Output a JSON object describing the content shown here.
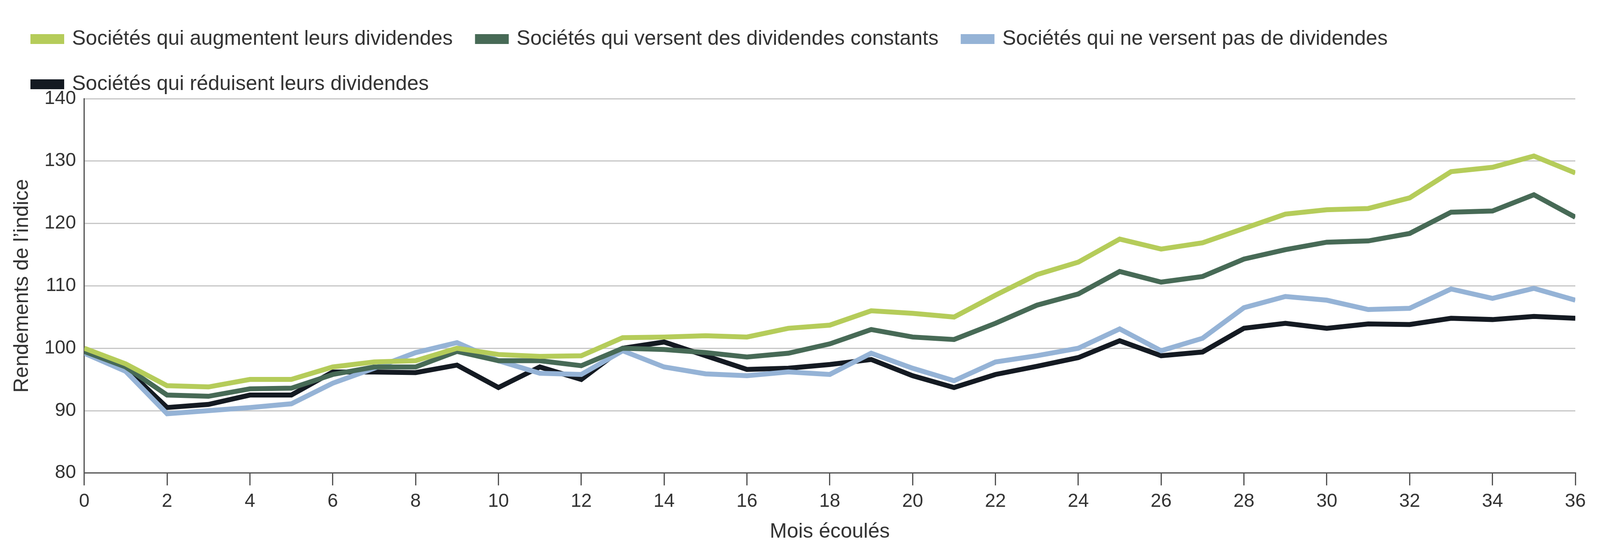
{
  "chart_data": {
    "type": "line",
    "x_label": "Mois écoulés",
    "y_label": "Rendements de l’indice",
    "x": [
      0,
      1,
      2,
      3,
      4,
      5,
      6,
      7,
      8,
      9,
      10,
      11,
      12,
      13,
      14,
      15,
      16,
      17,
      18,
      19,
      20,
      21,
      22,
      23,
      24,
      25,
      26,
      27,
      28,
      29,
      30,
      31,
      32,
      33,
      34,
      35,
      36
    ],
    "series": [
      {
        "name": "Sociétés qui augmentent leurs dividendes",
        "color": "#b5cc5a",
        "values": [
          100,
          97.5,
          94,
          93.8,
          95,
          95,
          97,
          97.8,
          98,
          100,
          99,
          98.7,
          98.8,
          101.7,
          101.8,
          102,
          101.8,
          103.2,
          103.7,
          106,
          105.6,
          105,
          108.5,
          111.8,
          113.8,
          117.5,
          115.9,
          116.9,
          119.2,
          121.5,
          122.2,
          122.4,
          124.1,
          128.3,
          129,
          130.8,
          128.1
        ]
      },
      {
        "name": "Sociétés qui versent des dividendes constants",
        "color": "#476a56",
        "values": [
          99.5,
          97,
          92.5,
          92.3,
          93.5,
          93.6,
          95.8,
          97,
          97,
          99.5,
          98,
          98,
          97.2,
          100,
          99.8,
          99.3,
          98.6,
          99.2,
          100.7,
          103,
          101.8,
          101.4,
          104,
          106.9,
          108.7,
          112.3,
          110.6,
          111.5,
          114.3,
          115.8,
          117,
          117.2,
          118.4,
          121.8,
          122,
          124.6,
          121
        ]
      },
      {
        "name": "Sociétés qui ne versent pas de dividendes",
        "color": "#95b3d6",
        "values": [
          99.2,
          96.3,
          89.5,
          90,
          90.5,
          91.1,
          94.4,
          96.8,
          99.3,
          100.9,
          98,
          96,
          95.8,
          99.6,
          97,
          95.9,
          95.6,
          96.2,
          95.8,
          99.2,
          96.8,
          94.8,
          97.8,
          98.8,
          100,
          103.1,
          99.6,
          101.6,
          106.5,
          108.3,
          107.7,
          106.2,
          106.4,
          109.5,
          108,
          109.6,
          107.7
        ]
      },
      {
        "name": "Sociétés qui réduisent leurs dividendes",
        "color": "#141a22",
        "values": [
          99.5,
          96.8,
          90.5,
          91,
          92.5,
          92.5,
          96.2,
          96.2,
          96.1,
          97.3,
          93.7,
          97,
          95,
          100,
          101,
          98.8,
          96.6,
          96.8,
          97.4,
          98.2,
          95.6,
          93.7,
          95.8,
          97.1,
          98.5,
          101.2,
          98.8,
          99.4,
          103.2,
          104,
          103.2,
          103.9,
          103.8,
          104.8,
          104.6,
          105.1,
          104.8
        ]
      }
    ],
    "xlim": [
      0,
      36
    ],
    "xticks": [
      0,
      2,
      4,
      6,
      8,
      10,
      12,
      14,
      16,
      18,
      20,
      22,
      24,
      26,
      28,
      30,
      32,
      34,
      36
    ],
    "ylim": [
      80,
      140
    ],
    "yticks": [
      80,
      90,
      100,
      110,
      120,
      130,
      140
    ],
    "grid": true,
    "legend": "top"
  }
}
